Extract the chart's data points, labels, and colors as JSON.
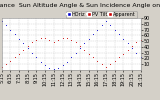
{
  "title": "Solar PV/Inverter Performance  Sun Altitude Angle & Sun Incidence Angle on PV Panels",
  "bg_color": "#d4d0c8",
  "plot_bg_color": "#ffffff",
  "grid_color": "#bbbbbb",
  "ylim": [
    0,
    90
  ],
  "yticks": [
    10,
    20,
    30,
    40,
    50,
    60,
    70,
    80,
    90
  ],
  "xlim": [
    0,
    32
  ],
  "blue_x": [
    0,
    1,
    2,
    3,
    4,
    5,
    6,
    7,
    8,
    9,
    10,
    11,
    12,
    13,
    14,
    15,
    16,
    17,
    18,
    19,
    20,
    21,
    22,
    23,
    24,
    25,
    26,
    27,
    28,
    29,
    30,
    31,
    32
  ],
  "blue_y": [
    85,
    78,
    70,
    62,
    54,
    46,
    38,
    30,
    22,
    14,
    8,
    4,
    2,
    4,
    8,
    14,
    22,
    30,
    38,
    46,
    54,
    62,
    70,
    78,
    85,
    78,
    70,
    62,
    54,
    46,
    38,
    30,
    22
  ],
  "red_x": [
    0,
    1,
    2,
    3,
    4,
    5,
    6,
    7,
    8,
    9,
    10,
    11,
    12,
    13,
    14,
    15,
    16,
    17,
    18,
    19,
    20,
    21,
    22,
    23,
    24,
    25,
    26,
    27,
    28,
    29,
    30,
    31,
    32
  ],
  "red_y": [
    5,
    10,
    16,
    22,
    28,
    35,
    42,
    48,
    52,
    56,
    56,
    52,
    48,
    52,
    56,
    56,
    52,
    48,
    42,
    35,
    28,
    22,
    16,
    10,
    5,
    10,
    16,
    22,
    28,
    35,
    42,
    48,
    52
  ],
  "blue_color": "#0000cc",
  "red_color": "#cc0000",
  "xtick_positions": [
    0,
    2,
    4,
    6,
    8,
    10,
    12,
    14,
    16,
    18,
    20,
    22,
    24,
    26,
    28,
    30,
    32
  ],
  "xtick_labels": [
    "5:15",
    "6:15",
    "7:15",
    "8:15",
    "9:15",
    "10:15",
    "11:15",
    "12:15",
    "13:15",
    "14:15",
    "15:15",
    "16:15",
    "17:15",
    "18:15",
    "19:15",
    "20:15",
    "21:15"
  ],
  "legend_blue_label": "HOriz",
  "legend_red_label1": "PV Tilt",
  "legend_red_label2": "Apparent",
  "title_fontsize": 4.5,
  "tick_fontsize": 3.5,
  "legend_fontsize": 3.5,
  "marker_size": 1.5
}
